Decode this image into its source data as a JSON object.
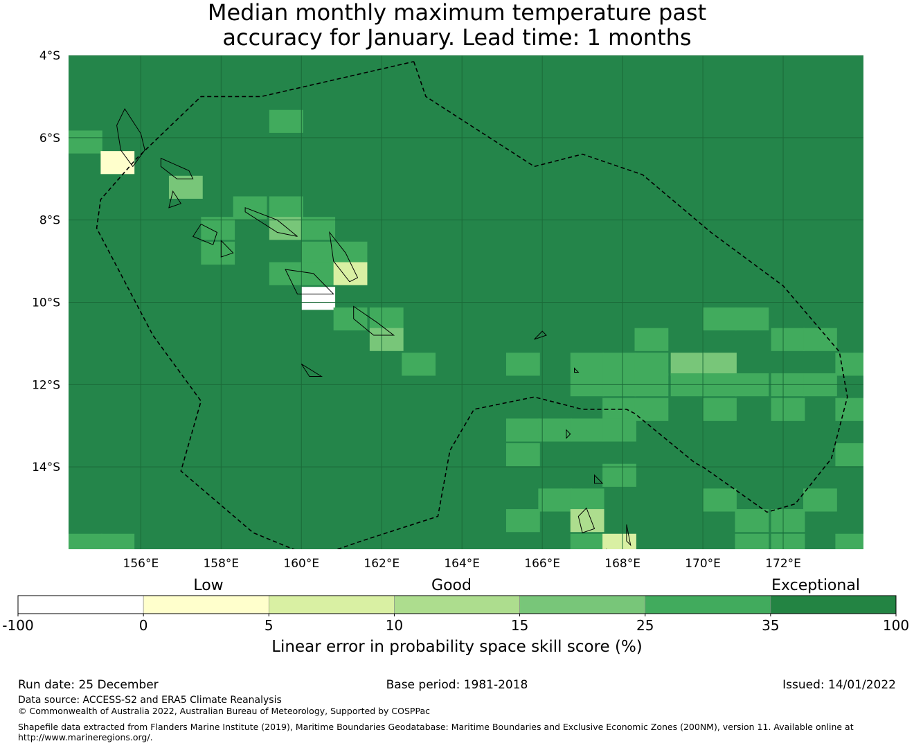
{
  "title": {
    "line1": "Median monthly maximum temperature past",
    "line2": "accuracy for January. Lead time: 1 months"
  },
  "map": {
    "lon_range": [
      154.2,
      174.0
    ],
    "lat_range": [
      -16.0,
      -4.0
    ],
    "lat_ticks": [
      {
        "value": -4,
        "label": "4°S"
      },
      {
        "value": -6,
        "label": "6°S"
      },
      {
        "value": -8,
        "label": "8°S"
      },
      {
        "value": -10,
        "label": "10°S"
      },
      {
        "value": -12,
        "label": "12°S"
      },
      {
        "value": -14,
        "label": "14°S"
      }
    ],
    "lon_ticks": [
      {
        "value": 156,
        "label": "156°E"
      },
      {
        "value": 158,
        "label": "158°E"
      },
      {
        "value": 160,
        "label": "160°E"
      },
      {
        "value": 162,
        "label": "162°E"
      },
      {
        "value": 164,
        "label": "164°E"
      },
      {
        "value": 166,
        "label": "166°E"
      },
      {
        "value": 168,
        "label": "168°E"
      },
      {
        "value": 170,
        "label": "170°E"
      },
      {
        "value": 172,
        "label": "172°E"
      }
    ],
    "background_color": "#24854a",
    "grid_color": "#1b6a38",
    "eez_boundary": [
      [
        162.8,
        -4.15
      ],
      [
        163.1,
        -5.0
      ],
      [
        165.8,
        -6.7
      ],
      [
        167.0,
        -6.4
      ],
      [
        168.5,
        -6.9
      ],
      [
        170.2,
        -8.3
      ],
      [
        172.0,
        -9.6
      ],
      [
        173.4,
        -11.2
      ],
      [
        173.6,
        -12.3
      ],
      [
        173.2,
        -13.8
      ],
      [
        172.3,
        -14.9
      ],
      [
        171.6,
        -15.1
      ],
      [
        170.0,
        -14.0
      ],
      [
        169.8,
        -13.9
      ],
      [
        168.3,
        -12.7
      ],
      [
        168.1,
        -12.6
      ],
      [
        167.0,
        -12.6
      ],
      [
        165.8,
        -12.3
      ],
      [
        164.3,
        -12.6
      ],
      [
        163.7,
        -13.6
      ],
      [
        163.4,
        -15.2
      ],
      [
        161.5,
        -15.8
      ],
      [
        160.3,
        -16.2
      ],
      [
        158.8,
        -15.6
      ],
      [
        157.0,
        -14.1
      ],
      [
        157.5,
        -12.4
      ],
      [
        156.3,
        -10.8
      ],
      [
        154.9,
        -8.2
      ],
      [
        155.0,
        -7.5
      ],
      [
        155.9,
        -6.5
      ],
      [
        157.5,
        -5.0
      ],
      [
        159.0,
        -5.0
      ],
      [
        162.8,
        -4.15
      ]
    ],
    "islands": [
      [
        [
          155.6,
          -5.3
        ],
        [
          155.8,
          -5.6
        ],
        [
          156.0,
          -5.9
        ],
        [
          156.1,
          -6.3
        ],
        [
          155.8,
          -6.7
        ],
        [
          155.5,
          -6.3
        ],
        [
          155.4,
          -5.7
        ],
        [
          155.6,
          -5.3
        ]
      ],
      [
        [
          156.5,
          -6.5
        ],
        [
          157.2,
          -6.8
        ],
        [
          157.3,
          -7.0
        ],
        [
          156.9,
          -7.0
        ],
        [
          156.5,
          -6.7
        ],
        [
          156.5,
          -6.5
        ]
      ],
      [
        [
          156.8,
          -7.3
        ],
        [
          157.0,
          -7.6
        ],
        [
          156.7,
          -7.7
        ],
        [
          156.8,
          -7.3
        ]
      ],
      [
        [
          157.5,
          -8.1
        ],
        [
          157.9,
          -8.3
        ],
        [
          157.8,
          -8.6
        ],
        [
          157.3,
          -8.4
        ],
        [
          157.5,
          -8.1
        ]
      ],
      [
        [
          158.0,
          -8.5
        ],
        [
          158.3,
          -8.8
        ],
        [
          158.0,
          -8.9
        ],
        [
          158.0,
          -8.5
        ]
      ],
      [
        [
          158.6,
          -7.7
        ],
        [
          159.4,
          -8.0
        ],
        [
          159.9,
          -8.4
        ],
        [
          159.4,
          -8.3
        ],
        [
          158.6,
          -7.8
        ],
        [
          158.6,
          -7.7
        ]
      ],
      [
        [
          160.7,
          -8.3
        ],
        [
          161.1,
          -8.8
        ],
        [
          161.4,
          -9.4
        ],
        [
          161.2,
          -9.5
        ],
        [
          160.8,
          -9.0
        ],
        [
          160.7,
          -8.3
        ]
      ],
      [
        [
          159.6,
          -9.2
        ],
        [
          160.3,
          -9.3
        ],
        [
          160.8,
          -9.8
        ],
        [
          159.9,
          -9.8
        ],
        [
          159.6,
          -9.2
        ]
      ],
      [
        [
          161.3,
          -10.1
        ],
        [
          161.9,
          -10.5
        ],
        [
          162.3,
          -10.8
        ],
        [
          161.8,
          -10.8
        ],
        [
          161.3,
          -10.4
        ],
        [
          161.3,
          -10.1
        ]
      ],
      [
        [
          160.0,
          -11.5
        ],
        [
          160.5,
          -11.8
        ],
        [
          160.2,
          -11.8
        ],
        [
          160.0,
          -11.5
        ]
      ],
      [
        [
          166.0,
          -10.7
        ],
        [
          166.1,
          -10.8
        ],
        [
          165.8,
          -10.9
        ],
        [
          166.0,
          -10.7
        ]
      ],
      [
        [
          167.1,
          -15.0
        ],
        [
          167.3,
          -15.5
        ],
        [
          167.0,
          -15.6
        ],
        [
          166.9,
          -15.2
        ],
        [
          167.1,
          -15.0
        ]
      ],
      [
        [
          168.1,
          -15.4
        ],
        [
          168.2,
          -15.9
        ],
        [
          168.1,
          -15.8
        ],
        [
          168.1,
          -15.4
        ]
      ],
      [
        [
          167.6,
          -16.0
        ],
        [
          167.8,
          -16.3
        ],
        [
          167.5,
          -16.2
        ],
        [
          167.6,
          -16.0
        ]
      ],
      [
        [
          167.3,
          -14.2
        ],
        [
          167.5,
          -14.4
        ],
        [
          167.3,
          -14.4
        ],
        [
          167.3,
          -14.2
        ]
      ],
      [
        [
          166.6,
          -13.1
        ],
        [
          166.7,
          -13.2
        ],
        [
          166.6,
          -13.3
        ],
        [
          166.6,
          -13.1
        ]
      ],
      [
        [
          166.8,
          -11.6
        ],
        [
          166.9,
          -11.7
        ],
        [
          166.8,
          -11.7
        ],
        [
          166.8,
          -11.6
        ]
      ]
    ],
    "cells": [
      {
        "lon": 159.2,
        "lat": -5.6,
        "class": 5
      },
      {
        "lon": 154.2,
        "lat": -6.1,
        "class": 5
      },
      {
        "lon": 155.0,
        "lat": -6.6,
        "class": 1
      },
      {
        "lon": 156.7,
        "lat": -7.2,
        "class": 4
      },
      {
        "lon": 158.3,
        "lat": -7.7,
        "class": 5
      },
      {
        "lon": 159.2,
        "lat": -7.7,
        "class": 5
      },
      {
        "lon": 157.5,
        "lat": -8.2,
        "class": 5
      },
      {
        "lon": 157.5,
        "lat": -8.8,
        "class": 5
      },
      {
        "lon": 159.2,
        "lat": -8.2,
        "class": 4
      },
      {
        "lon": 160.0,
        "lat": -8.2,
        "class": 5
      },
      {
        "lon": 160.0,
        "lat": -8.8,
        "class": 5
      },
      {
        "lon": 160.8,
        "lat": -8.8,
        "class": 5
      },
      {
        "lon": 159.2,
        "lat": -9.3,
        "class": 5
      },
      {
        "lon": 160.0,
        "lat": -9.3,
        "class": 5
      },
      {
        "lon": 160.8,
        "lat": -9.3,
        "class": 2
      },
      {
        "lon": 160.0,
        "lat": -9.9,
        "class": 0
      },
      {
        "lon": 161.7,
        "lat": -10.4,
        "class": 5
      },
      {
        "lon": 160.8,
        "lat": -10.4,
        "class": 5
      },
      {
        "lon": 161.7,
        "lat": -10.9,
        "class": 4
      },
      {
        "lon": 162.5,
        "lat": -11.5,
        "class": 5
      },
      {
        "lon": 165.1,
        "lat": -11.5,
        "class": 5
      },
      {
        "lon": 166.7,
        "lat": -11.5,
        "class": 5
      },
      {
        "lon": 167.5,
        "lat": -11.5,
        "class": 5
      },
      {
        "lon": 168.3,
        "lat": -10.9,
        "class": 5
      },
      {
        "lon": 168.3,
        "lat": -11.5,
        "class": 5
      },
      {
        "lon": 169.2,
        "lat": -11.5,
        "class": 4
      },
      {
        "lon": 170.0,
        "lat": -11.5,
        "class": 4
      },
      {
        "lon": 170.0,
        "lat": -10.4,
        "class": 5
      },
      {
        "lon": 170.8,
        "lat": -10.4,
        "class": 5
      },
      {
        "lon": 171.7,
        "lat": -10.9,
        "class": 5
      },
      {
        "lon": 172.5,
        "lat": -10.9,
        "class": 5
      },
      {
        "lon": 173.3,
        "lat": -11.5,
        "class": 5
      },
      {
        "lon": 166.7,
        "lat": -12.0,
        "class": 5
      },
      {
        "lon": 167.5,
        "lat": -12.0,
        "class": 5
      },
      {
        "lon": 168.3,
        "lat": -12.0,
        "class": 5
      },
      {
        "lon": 169.2,
        "lat": -12.0,
        "class": 5
      },
      {
        "lon": 170.0,
        "lat": -12.0,
        "class": 5
      },
      {
        "lon": 170.8,
        "lat": -12.0,
        "class": 5
      },
      {
        "lon": 171.7,
        "lat": -12.0,
        "class": 5
      },
      {
        "lon": 172.5,
        "lat": -12.0,
        "class": 5
      },
      {
        "lon": 167.5,
        "lat": -12.6,
        "class": 5
      },
      {
        "lon": 168.3,
        "lat": -12.6,
        "class": 5
      },
      {
        "lon": 170.0,
        "lat": -12.6,
        "class": 5
      },
      {
        "lon": 171.7,
        "lat": -12.6,
        "class": 5
      },
      {
        "lon": 173.3,
        "lat": -12.6,
        "class": 5
      },
      {
        "lon": 165.1,
        "lat": -13.1,
        "class": 5
      },
      {
        "lon": 165.9,
        "lat": -13.1,
        "class": 5
      },
      {
        "lon": 166.7,
        "lat": -13.1,
        "class": 5
      },
      {
        "lon": 167.5,
        "lat": -13.1,
        "class": 5
      },
      {
        "lon": 165.1,
        "lat": -13.7,
        "class": 5
      },
      {
        "lon": 173.3,
        "lat": -13.7,
        "class": 5
      },
      {
        "lon": 167.5,
        "lat": -14.2,
        "class": 5
      },
      {
        "lon": 165.9,
        "lat": -14.8,
        "class": 5
      },
      {
        "lon": 166.7,
        "lat": -14.8,
        "class": 5
      },
      {
        "lon": 170.0,
        "lat": -14.8,
        "class": 5
      },
      {
        "lon": 172.5,
        "lat": -14.8,
        "class": 5
      },
      {
        "lon": 165.1,
        "lat": -15.3,
        "class": 5
      },
      {
        "lon": 166.7,
        "lat": -15.3,
        "class": 3
      },
      {
        "lon": 170.8,
        "lat": -15.3,
        "class": 5
      },
      {
        "lon": 171.7,
        "lat": -15.3,
        "class": 5
      },
      {
        "lon": 166.7,
        "lat": -15.9,
        "class": 5
      },
      {
        "lon": 167.5,
        "lat": -15.9,
        "class": 2
      },
      {
        "lon": 170.8,
        "lat": -15.9,
        "class": 5
      },
      {
        "lon": 171.7,
        "lat": -15.9,
        "class": 5
      },
      {
        "lon": 154.2,
        "lat": -15.9,
        "class": 5
      },
      {
        "lon": 155.0,
        "lat": -15.9,
        "class": 5
      },
      {
        "lon": 173.3,
        "lat": -15.9,
        "class": 5
      }
    ]
  },
  "colorbar": {
    "category_labels": {
      "low": "Low",
      "good": "Good",
      "exceptional": "Exceptional"
    },
    "bins": [
      {
        "from": "-100",
        "to": "0",
        "color": "#ffffff"
      },
      {
        "from": "0",
        "to": "5",
        "color": "#ffffcc"
      },
      {
        "from": "5",
        "to": "10",
        "color": "#d9f0a3"
      },
      {
        "from": "10",
        "to": "15",
        "color": "#addd8e"
      },
      {
        "from": "15",
        "to": "25",
        "color": "#78c679"
      },
      {
        "from": "25",
        "to": "35",
        "color": "#41ab5d"
      },
      {
        "from": "35",
        "to": "100",
        "color": "#238443"
      }
    ],
    "tick_labels": [
      "-100",
      "0",
      "5",
      "10",
      "15",
      "25",
      "35",
      "100"
    ],
    "caption": "Linear error in probability space skill score (%)"
  },
  "footer": {
    "run_date": "Run date: 25 December",
    "base_period": "Base period: 1981-2018",
    "issued": "Issued: 14/01/2022",
    "data_source": "Data source: ACCESS-S2 and ERA5 Climate Reanalysis",
    "copyright": "© Commonwealth of Australia 2022, Australian Bureau of Meteorology, Supported by COSPPac",
    "shapefile_line1": "Shapefile data extracted from Flanders Marine Institute (2019), Maritime Boundaries Geodatabase: Maritime Boundaries and Exclusive Economic Zones (200NM), version 11. Available online at",
    "shapefile_line2": "http://www.marineregions.org/."
  }
}
